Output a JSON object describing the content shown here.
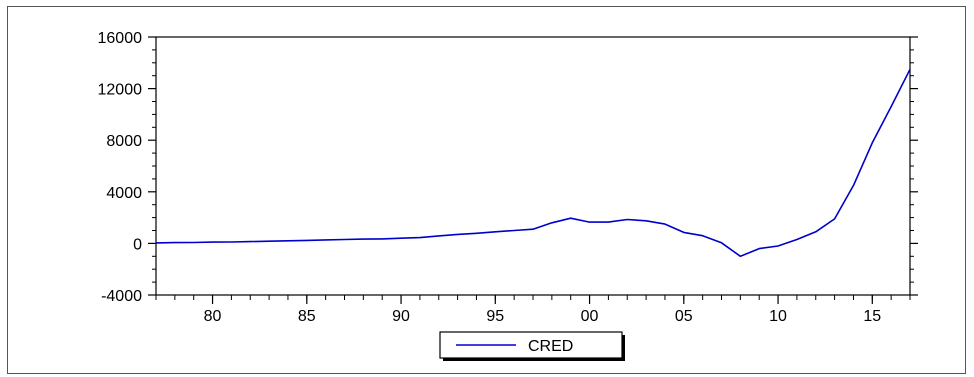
{
  "chart_data": {
    "type": "line",
    "title": "",
    "xlabel": "",
    "ylabel": "",
    "x": [
      1977,
      1978,
      1979,
      1980,
      1981,
      1982,
      1983,
      1984,
      1985,
      1986,
      1987,
      1988,
      1989,
      1990,
      1991,
      1992,
      1993,
      1994,
      1995,
      1996,
      1997,
      1998,
      1999,
      2000,
      2001,
      2002,
      2003,
      2004,
      2005,
      2006,
      2007,
      2008,
      2009,
      2010,
      2011,
      2012,
      2013,
      2014,
      2015,
      2016,
      2017
    ],
    "series": [
      {
        "name": "CRED",
        "color": "#0000cc",
        "values": [
          40,
          60,
          70,
          100,
          110,
          140,
          170,
          200,
          230,
          270,
          300,
          330,
          350,
          400,
          450,
          580,
          700,
          780,
          900,
          1000,
          1100,
          1600,
          1950,
          1650,
          1650,
          1850,
          1750,
          1500,
          850,
          600,
          50,
          -1000,
          -400,
          -200,
          300,
          900,
          1900,
          4500,
          7800,
          10600,
          13500
        ]
      }
    ],
    "xlim": [
      1977,
      2017
    ],
    "ylim": [
      -4000,
      16000
    ],
    "y_ticks": [
      -4000,
      0,
      4000,
      8000,
      12000,
      16000
    ],
    "y_tick_labels": [
      "-4000",
      "0",
      "4000",
      "8000",
      "12000",
      "16000"
    ],
    "x_ticks": [
      1980,
      1985,
      1990,
      1995,
      2000,
      2005,
      2010,
      2015
    ],
    "x_tick_labels": [
      "80",
      "85",
      "90",
      "95",
      "00",
      "05",
      "10",
      "15"
    ],
    "grid": false,
    "legend": {
      "placement": "bottom-center",
      "entries": [
        "CRED"
      ]
    }
  }
}
